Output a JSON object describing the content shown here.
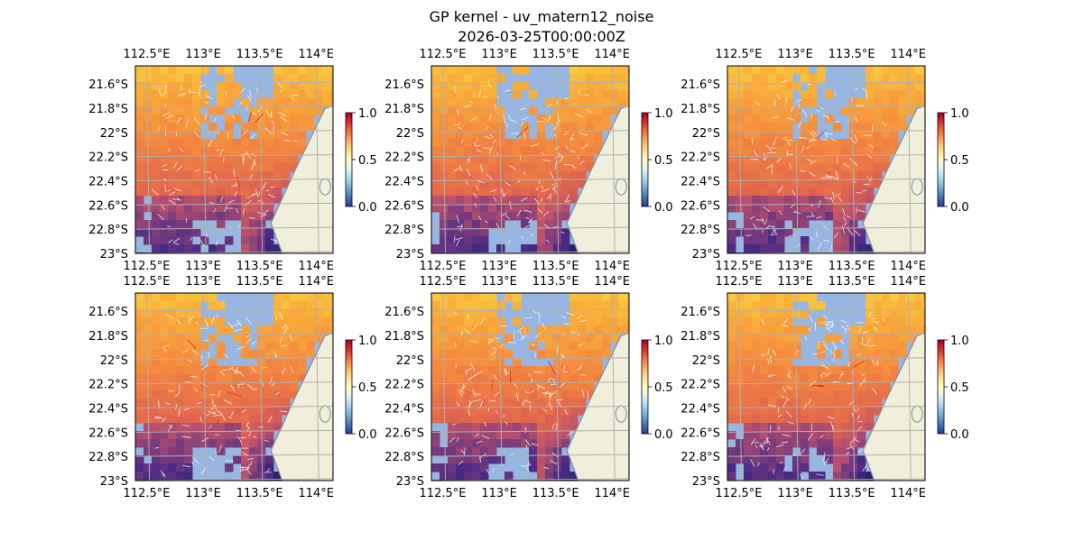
{
  "title": "GP kernel - uv_matern12_noise",
  "subtitle": "2026-03-25T00:00:00Z",
  "colors": {
    "ocean_fill": "#97b6e1",
    "land_fill": "#efefdb",
    "coast_line": "#7f8a99",
    "grid_line": "#b0b0b0",
    "field_low": "#1a1b5a",
    "field_mid": "#b8506e",
    "field_mid2": "#f4883f",
    "field_high": "#f7e64a",
    "colorbar_low": "#313695",
    "colorbar_mid": "#ffffbf",
    "colorbar_high": "#a50026",
    "arrow_color": "#ffffff",
    "highlight_arrow": "#d7301f"
  },
  "chart_data": [
    {
      "type": "heatmap",
      "panel": "top-left",
      "lon_ticks": [
        "112.5°E",
        "113°E",
        "113.5°E",
        "114°E"
      ],
      "lon_values": [
        112.5,
        113.0,
        113.5,
        114.0
      ],
      "lat_ticks": [
        "21.6°S",
        "21.8°S",
        "22°S",
        "22.2°S",
        "22.4°S",
        "22.6°S",
        "22.8°S",
        "23°S"
      ],
      "lat_values": [
        -21.6,
        -21.8,
        -22.0,
        -22.2,
        -22.4,
        -22.6,
        -22.8,
        -23.0
      ],
      "xlim": [
        112.4,
        114.15
      ],
      "ylim": [
        -23.0,
        -21.45
      ],
      "colorbar": {
        "ticks": [
          "0.0",
          "0.5",
          "1.0"
        ],
        "range": [
          0.0,
          1.0
        ],
        "cmap": "RdYlBu_r"
      },
      "grid": true
    },
    {
      "type": "heatmap",
      "panel": "top-middle",
      "lon_ticks": [
        "112.5°E",
        "113°E",
        "113.5°E",
        "114°E"
      ],
      "lon_values": [
        112.5,
        113.0,
        113.5,
        114.0
      ],
      "lat_ticks": [
        "21.6°S",
        "21.8°S",
        "22°S",
        "22.2°S",
        "22.4°S",
        "22.6°S",
        "22.8°S",
        "23°S"
      ],
      "lat_values": [
        -21.6,
        -21.8,
        -22.0,
        -22.2,
        -22.4,
        -22.6,
        -22.8,
        -23.0
      ],
      "xlim": [
        112.4,
        114.15
      ],
      "ylim": [
        -23.0,
        -21.45
      ],
      "colorbar": {
        "ticks": [
          "0.0",
          "0.5",
          "1.0"
        ],
        "range": [
          0.0,
          1.0
        ],
        "cmap": "RdYlBu_r"
      },
      "grid": true
    },
    {
      "type": "heatmap",
      "panel": "top-right",
      "lon_ticks": [
        "112.5°E",
        "113°E",
        "113.5°E",
        "114°E"
      ],
      "lon_values": [
        112.5,
        113.0,
        113.5,
        114.0
      ],
      "lat_ticks": [
        "21.6°S",
        "21.8°S",
        "22°S",
        "22.2°S",
        "22.4°S",
        "22.6°S",
        "22.8°S",
        "23°S"
      ],
      "lat_values": [
        -21.6,
        -21.8,
        -22.0,
        -22.2,
        -22.4,
        -22.6,
        -22.8,
        -23.0
      ],
      "xlim": [
        112.4,
        114.15
      ],
      "ylim": [
        -23.0,
        -21.45
      ],
      "colorbar": {
        "ticks": [
          "0.0",
          "0.5",
          "1.0"
        ],
        "range": [
          0.0,
          1.0
        ],
        "cmap": "RdYlBu_r"
      },
      "grid": true
    },
    {
      "type": "heatmap",
      "panel": "bottom-left",
      "lon_ticks": [
        "112.5°E",
        "113°E",
        "113.5°E",
        "114°E"
      ],
      "lon_values": [
        112.5,
        113.0,
        113.5,
        114.0
      ],
      "lat_ticks": [
        "21.6°S",
        "21.8°S",
        "22°S",
        "22.2°S",
        "22.4°S",
        "22.6°S",
        "22.8°S",
        "23°S"
      ],
      "lat_values": [
        -21.6,
        -21.8,
        -22.0,
        -22.2,
        -22.4,
        -22.6,
        -22.8,
        -23.0
      ],
      "xlim": [
        112.4,
        114.15
      ],
      "ylim": [
        -23.0,
        -21.45
      ],
      "colorbar": {
        "ticks": [
          "0.0",
          "0.5",
          "1.0"
        ],
        "range": [
          0.0,
          1.0
        ],
        "cmap": "RdYlBu_r"
      },
      "grid": true
    },
    {
      "type": "heatmap",
      "panel": "bottom-middle",
      "lon_ticks": [
        "112.5°E",
        "113°E",
        "113.5°E",
        "114°E"
      ],
      "lon_values": [
        112.5,
        113.0,
        113.5,
        114.0
      ],
      "lat_ticks": [
        "21.6°S",
        "21.8°S",
        "22°S",
        "22.2°S",
        "22.4°S",
        "22.6°S",
        "22.8°S",
        "23°S"
      ],
      "lat_values": [
        -21.6,
        -21.8,
        -22.0,
        -22.2,
        -22.4,
        -22.6,
        -22.8,
        -23.0
      ],
      "xlim": [
        112.4,
        114.15
      ],
      "ylim": [
        -23.0,
        -21.45
      ],
      "colorbar": {
        "ticks": [
          "0.0",
          "0.5",
          "1.0"
        ],
        "range": [
          0.0,
          1.0
        ],
        "cmap": "RdYlBu_r"
      },
      "grid": true
    },
    {
      "type": "heatmap",
      "panel": "bottom-right",
      "lon_ticks": [
        "112.5°E",
        "113°E",
        "113.5°E",
        "114°E"
      ],
      "lon_values": [
        112.5,
        113.0,
        113.5,
        114.0
      ],
      "lat_ticks": [
        "21.6°S",
        "21.8°S",
        "22°S",
        "22.2°S",
        "22.4°S",
        "22.6°S",
        "22.8°S",
        "23°S"
      ],
      "lat_values": [
        -21.6,
        -21.8,
        -22.0,
        -22.2,
        -22.4,
        -22.6,
        -22.8,
        -23.0
      ],
      "xlim": [
        112.4,
        114.15
      ],
      "ylim": [
        -23.0,
        -21.45
      ],
      "colorbar": {
        "ticks": [
          "0.0",
          "0.5",
          "1.0"
        ],
        "range": [
          0.0,
          1.0
        ],
        "cmap": "RdYlBu_r"
      },
      "grid": true
    }
  ]
}
